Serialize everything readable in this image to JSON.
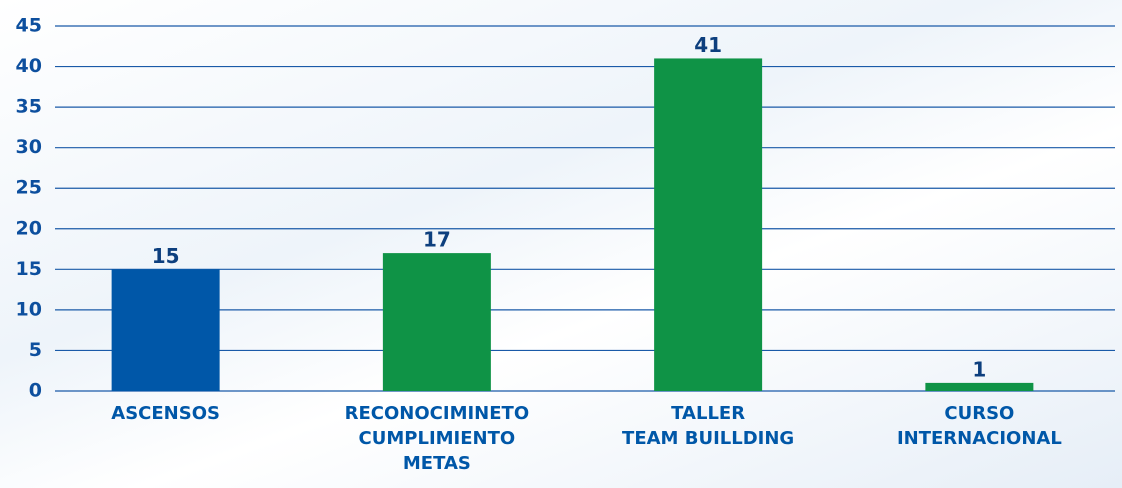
{
  "chart_data": {
    "type": "bar",
    "categories": [
      [
        "ASCENSOS"
      ],
      [
        "RECONOCIMINETO",
        "CUMPLIMIENTO",
        "METAS"
      ],
      [
        "TALLER",
        "TEAM BUILLDING"
      ],
      [
        "CURSO",
        "INTERNACIONAL"
      ]
    ],
    "values": [
      15,
      17,
      41,
      1
    ],
    "colors": [
      "#0057a8",
      "#0f9346",
      "#0f9346",
      "#0f9346"
    ],
    "ylim": [
      0,
      45
    ],
    "yticks": [
      0,
      5,
      10,
      15,
      20,
      25,
      30,
      35,
      40,
      45
    ],
    "grid": true
  }
}
